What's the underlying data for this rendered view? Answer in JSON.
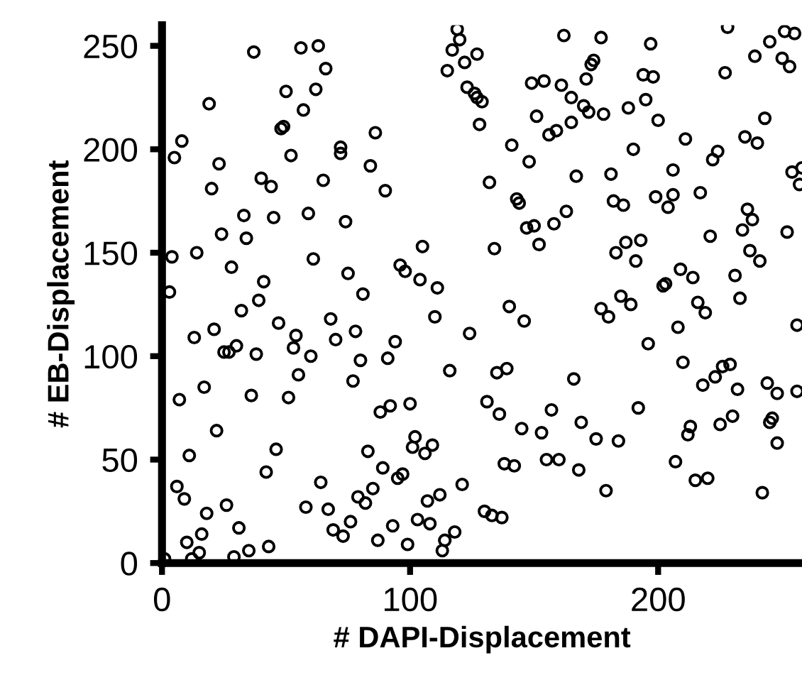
{
  "chart_data": {
    "type": "scatter",
    "xlabel": "# DAPI-Displacement",
    "ylabel": "# EB-Displacement",
    "xlim": [
      0,
      258
    ],
    "ylim": [
      0,
      260
    ],
    "xticks": [
      0,
      100,
      200
    ],
    "yticks": [
      0,
      50,
      100,
      150,
      200,
      250
    ],
    "marker": "circle",
    "series": [
      {
        "color": "#000000",
        "x": [
          37,
          56,
          63,
          66,
          50,
          62,
          19,
          57,
          48,
          49,
          8,
          5,
          23,
          52,
          72,
          72,
          40,
          44,
          20,
          65,
          33,
          45,
          59,
          74,
          24,
          34,
          4,
          14,
          61,
          28,
          75,
          41,
          119,
          120,
          117,
          122,
          127,
          115,
          162,
          123,
          126,
          127,
          129,
          128,
          149,
          154,
          161,
          151,
          159,
          156,
          86,
          84,
          90,
          141,
          148,
          132,
          143,
          144,
          163,
          158,
          150,
          147,
          152,
          105,
          134,
          96,
          98,
          104,
          111,
          177,
          197,
          228,
          245,
          251,
          255,
          239,
          250,
          253,
          227,
          174,
          173,
          171,
          194,
          198,
          165,
          165,
          170,
          172,
          178,
          188,
          195,
          200,
          243,
          211,
          190,
          235,
          240,
          224,
          222,
          167,
          181,
          206,
          254,
          258,
          257,
          182,
          186,
          199,
          206,
          204,
          217,
          236,
          238,
          234,
          252,
          221,
          237,
          241,
          187,
          193,
          183,
          191,
          209,
          214,
          231,
          202,
          203,
          3,
          32,
          39,
          21,
          13,
          47,
          54,
          53,
          60,
          68,
          70,
          77,
          25,
          27,
          30,
          38,
          55,
          7,
          17,
          36,
          51,
          22,
          11,
          46,
          42,
          6,
          9,
          18,
          26,
          31,
          64,
          58,
          67,
          76,
          69,
          73,
          10,
          16,
          15,
          12,
          29,
          35,
          43,
          1,
          81,
          140,
          146,
          110,
          124,
          78,
          80,
          94,
          91,
          116,
          135,
          139,
          131,
          136,
          145,
          153,
          157,
          88,
          92,
          100,
          102,
          101,
          106,
          109,
          83,
          89,
          95,
          97,
          85,
          79,
          82,
          138,
          142,
          155,
          160,
          121,
          112,
          107,
          103,
          108,
          93,
          87,
          99,
          118,
          114,
          113,
          130,
          133,
          137,
          166,
          177,
          180,
          185,
          189,
          216,
          219,
          233,
          256,
          208,
          196,
          210,
          218,
          223,
          226,
          229,
          232,
          244,
          248,
          256,
          192,
          169,
          175,
          184,
          168,
          179,
          213,
          212,
          225,
          230,
          246,
          245,
          248,
          207,
          215,
          220,
          242
        ],
        "values": [
          247,
          249,
          250,
          239,
          228,
          229,
          222,
          219,
          210,
          211,
          204,
          196,
          193,
          197,
          198,
          201,
          186,
          182,
          181,
          185,
          168,
          167,
          169,
          165,
          159,
          157,
          148,
          150,
          147,
          143,
          140,
          136,
          258,
          253,
          248,
          242,
          246,
          238,
          255,
          230,
          227,
          225,
          223,
          212,
          232,
          233,
          231,
          216,
          209,
          207,
          208,
          192,
          180,
          202,
          194,
          184,
          176,
          174,
          170,
          164,
          163,
          162,
          154,
          153,
          152,
          144,
          141,
          137,
          133,
          254,
          251,
          259,
          252,
          257,
          256,
          245,
          244,
          240,
          237,
          243,
          241,
          234,
          236,
          235,
          225,
          213,
          221,
          218,
          217,
          220,
          224,
          214,
          215,
          205,
          200,
          206,
          203,
          199,
          195,
          187,
          188,
          190,
          189,
          191,
          183,
          175,
          173,
          177,
          178,
          172,
          179,
          171,
          166,
          161,
          160,
          158,
          151,
          146,
          155,
          156,
          150,
          146,
          142,
          138,
          139,
          134,
          135,
          131,
          122,
          127,
          113,
          109,
          116,
          110,
          104,
          100,
          118,
          108,
          88,
          102,
          102,
          105,
          101,
          91,
          79,
          85,
          81,
          80,
          64,
          52,
          55,
          44,
          37,
          31,
          24,
          28,
          17,
          39,
          27,
          26,
          20,
          16,
          13,
          10,
          14,
          5,
          2,
          3,
          6,
          8,
          2,
          130,
          124,
          117,
          119,
          111,
          112,
          98,
          107,
          99,
          93,
          92,
          94,
          78,
          72,
          65,
          63,
          74,
          73,
          76,
          77,
          61,
          56,
          53,
          57,
          54,
          46,
          41,
          43,
          36,
          32,
          29,
          48,
          47,
          50,
          50,
          38,
          33,
          30,
          21,
          19,
          18,
          11,
          9,
          15,
          11,
          6,
          25,
          23,
          22,
          89,
          123,
          119,
          129,
          125,
          126,
          121,
          128,
          115,
          114,
          106,
          97,
          86,
          90,
          95,
          96,
          84,
          87,
          82,
          83,
          75,
          68,
          60,
          59,
          45,
          35,
          66,
          62,
          67,
          71,
          70,
          68,
          58,
          49,
          40,
          41,
          34
        ]
      }
    ]
  }
}
